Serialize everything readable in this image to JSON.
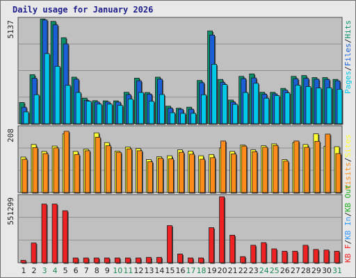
{
  "title": "Daily usage for January 2026",
  "colors": {
    "background": "#e8e8e8",
    "plot_background": "#c0c0c0",
    "gridline": "#8f8f8f",
    "title": "#1c1c8a",
    "hits": "#0b8f6a",
    "files": "#1a5fd6",
    "pages": "#00c8e8",
    "visits": "#ffff33",
    "sites": "#ff8c1a",
    "kbin": "#3399ff",
    "kbout": "#22aa22",
    "kbf": "#ee2222",
    "weekday_label": "#222222",
    "weekend_label": "#1e8a55"
  },
  "chart_data": [
    {
      "type": "bar",
      "panel": "requests",
      "y_max_label": "5137",
      "ylim": [
        0,
        5137
      ],
      "categories": [
        "1",
        "2",
        "3",
        "4",
        "5",
        "6",
        "7",
        "8",
        "9",
        "10",
        "11",
        "12",
        "13",
        "14",
        "15",
        "16",
        "17",
        "18",
        "19",
        "20",
        "21",
        "22",
        "23",
        "24",
        "25",
        "26",
        "27",
        "28",
        "29",
        "30",
        "31"
      ],
      "legend": [
        "Pages",
        "Files",
        "Hits"
      ],
      "series": [
        {
          "name": "Hits",
          "values": [
            1040,
            2400,
            5130,
            5010,
            4210,
            2280,
            1250,
            1130,
            1120,
            1120,
            1540,
            2230,
            1530,
            2280,
            860,
            760,
            810,
            2120,
            4540,
            2170,
            1160,
            2320,
            2440,
            1540,
            1540,
            1730,
            2320,
            2360,
            2260,
            2260,
            2170
          ]
        },
        {
          "name": "Files",
          "values": [
            810,
            2230,
            5080,
            4840,
            3910,
            2180,
            1140,
            1060,
            1060,
            1060,
            1420,
            2100,
            1450,
            2180,
            760,
            710,
            710,
            2010,
            4340,
            2020,
            1060,
            2210,
            2240,
            1450,
            1460,
            1640,
            2200,
            2220,
            2180,
            2170,
            2100
          ]
        },
        {
          "name": "Pages",
          "values": [
            580,
            1420,
            3430,
            2810,
            1880,
            1530,
            1100,
            960,
            960,
            900,
            1210,
            1530,
            1100,
            1430,
            540,
            510,
            510,
            1420,
            2910,
            1920,
            950,
            1530,
            1980,
            1250,
            1380,
            1510,
            1890,
            1820,
            1750,
            1760,
            1690
          ]
        }
      ]
    },
    {
      "type": "bar",
      "panel": "visits",
      "y_max_label": "208",
      "ylim": [
        0,
        208
      ],
      "categories": [
        "1",
        "2",
        "3",
        "4",
        "5",
        "6",
        "7",
        "8",
        "9",
        "10",
        "11",
        "12",
        "13",
        "14",
        "15",
        "16",
        "17",
        "18",
        "19",
        "20",
        "21",
        "22",
        "23",
        "24",
        "25",
        "26",
        "27",
        "28",
        "29",
        "30",
        "31"
      ],
      "legend": [
        "Visits",
        "Sites"
      ],
      "series": [
        {
          "name": "Visits",
          "values": [
            113,
            153,
            131,
            148,
            187,
            131,
            138,
            190,
            159,
            132,
            145,
            140,
            105,
            114,
            117,
            136,
            132,
            117,
            121,
            142,
            131,
            151,
            136,
            149,
            155,
            105,
            159,
            153,
            187,
            147,
            146
          ]
        },
        {
          "name": "Sites",
          "values": [
            106,
            143,
            124,
            142,
            195,
            121,
            133,
            176,
            149,
            128,
            139,
            133,
            98,
            109,
            107,
            128,
            122,
            106,
            111,
            164,
            123,
            148,
            130,
            144,
            150,
            100,
            164,
            144,
            163,
            186,
            124
          ]
        }
      ]
    },
    {
      "type": "bar",
      "panel": "kbytes",
      "y_max_label": "551299",
      "ylim": [
        0,
        551299
      ],
      "categories": [
        "1",
        "2",
        "3",
        "4",
        "5",
        "6",
        "7",
        "8",
        "9",
        "10",
        "11",
        "12",
        "13",
        "14",
        "15",
        "16",
        "17",
        "18",
        "19",
        "20",
        "21",
        "22",
        "23",
        "24",
        "25",
        "26",
        "27",
        "28",
        "29",
        "30",
        "31"
      ],
      "legend": [
        "KB F",
        "KB In",
        "KB Out"
      ],
      "series": [
        {
          "name": "KB F",
          "values": [
            20000,
            165000,
            490000,
            490000,
            434000,
            40000,
            40000,
            40000,
            40000,
            40000,
            40000,
            40000,
            45000,
            45000,
            310000,
            73000,
            40000,
            40000,
            293000,
            551299,
            230000,
            51000,
            146000,
            168000,
            116000,
            96000,
            96000,
            146000,
            111000,
            106000,
            96000
          ]
        }
      ]
    }
  ],
  "x_label_colors": [
    "weekday",
    "weekday",
    "weekend",
    "weekend",
    "weekday",
    "weekday",
    "weekday",
    "weekday",
    "weekday",
    "weekend",
    "weekend",
    "weekday",
    "weekday",
    "weekday",
    "weekday",
    "weekday",
    "weekend",
    "weekend",
    "weekday",
    "weekday",
    "weekday",
    "weekday",
    "weekday",
    "weekend",
    "weekend",
    "weekday",
    "weekday",
    "weekday",
    "weekday",
    "weekday",
    "weekend"
  ]
}
